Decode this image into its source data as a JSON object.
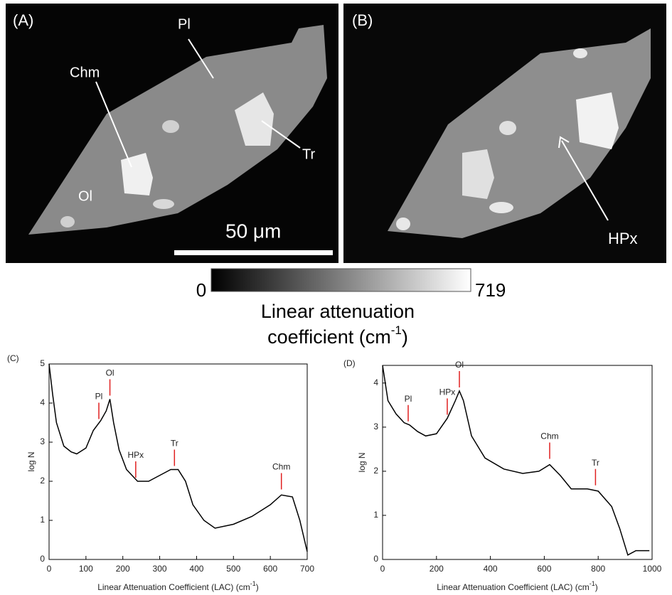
{
  "panels": [
    {
      "label": "(A)",
      "annotations": [
        "Pl",
        "Chm",
        "Ol",
        "Tr"
      ],
      "scale_bar": "50 μm"
    },
    {
      "label": "(B)",
      "annotations": [
        "HPx"
      ]
    }
  ],
  "colorbar": {
    "min": 0,
    "max": 719,
    "label": "Linear attenuation",
    "label2": "coefficient (cm",
    "label2_sup": "-1",
    "label2_end": ")"
  },
  "chart_data": [
    {
      "type": "line",
      "panel": "(C)",
      "ylabel": "log N",
      "xlabel": "Linear  Attenuation Coefficient (LAC) (cm",
      "xlabel_sup": "-1",
      "xlabel_end": ")",
      "x": [
        0,
        10,
        20,
        40,
        60,
        75,
        100,
        120,
        140,
        155,
        165,
        175,
        190,
        210,
        240,
        270,
        300,
        330,
        350,
        370,
        390,
        420,
        450,
        500,
        550,
        600,
        630,
        660,
        680,
        700
      ],
      "values": [
        5,
        4.2,
        3.5,
        2.9,
        2.75,
        2.7,
        2.85,
        3.3,
        3.55,
        3.8,
        4.1,
        3.5,
        2.8,
        2.3,
        2.0,
        2.0,
        2.15,
        2.3,
        2.3,
        2.0,
        1.4,
        1.0,
        0.8,
        0.9,
        1.1,
        1.4,
        1.65,
        1.6,
        1.0,
        0.2
      ],
      "color": "#000000",
      "xlim": [
        0,
        700
      ],
      "xticks": [
        0,
        100,
        200,
        300,
        400,
        500,
        600,
        700
      ],
      "ylim": [
        0,
        5
      ],
      "yticks": [
        0,
        1,
        2,
        3,
        4,
        5
      ],
      "annotations": [
        {
          "text": "Pl",
          "x": 135,
          "y": 3.5
        },
        {
          "text": "Ol",
          "x": 165,
          "y": 4.1
        },
        {
          "text": "HPx",
          "x": 235,
          "y": 2.0
        },
        {
          "text": "Tr",
          "x": 340,
          "y": 2.3
        },
        {
          "text": "Chm",
          "x": 630,
          "y": 1.7
        }
      ],
      "annotation_color": "#e02020"
    },
    {
      "type": "line",
      "panel": "(D)",
      "ylabel": "log N",
      "xlabel": "Linear  Attenuation Coefficient (LAC) (cm",
      "xlabel_sup": "-1",
      "xlabel_end": ")",
      "x": [
        0,
        20,
        50,
        80,
        100,
        130,
        160,
        200,
        240,
        270,
        285,
        300,
        330,
        380,
        450,
        520,
        580,
        620,
        660,
        700,
        760,
        800,
        850,
        880,
        910,
        940,
        990
      ],
      "values": [
        4.4,
        3.6,
        3.3,
        3.1,
        3.05,
        2.9,
        2.8,
        2.85,
        3.2,
        3.6,
        3.82,
        3.6,
        2.8,
        2.3,
        2.05,
        1.95,
        2.0,
        2.15,
        1.9,
        1.6,
        1.6,
        1.55,
        1.2,
        0.7,
        0.1,
        0.2,
        0.2
      ],
      "color": "#000000",
      "xlim": [
        0,
        1000
      ],
      "xticks": [
        0,
        200,
        400,
        600,
        800,
        1000
      ],
      "ylim": [
        0,
        4.4
      ],
      "yticks": [
        0,
        1,
        2,
        3,
        4
      ],
      "annotations": [
        {
          "text": "Pl",
          "x": 95,
          "y": 3.05
        },
        {
          "text": "HPx",
          "x": 240,
          "y": 3.2
        },
        {
          "text": "Ol",
          "x": 285,
          "y": 3.82
        },
        {
          "text": "Chm",
          "x": 620,
          "y": 2.2
        },
        {
          "text": "Tr",
          "x": 790,
          "y": 1.6
        }
      ],
      "annotation_color": "#e02020"
    }
  ]
}
